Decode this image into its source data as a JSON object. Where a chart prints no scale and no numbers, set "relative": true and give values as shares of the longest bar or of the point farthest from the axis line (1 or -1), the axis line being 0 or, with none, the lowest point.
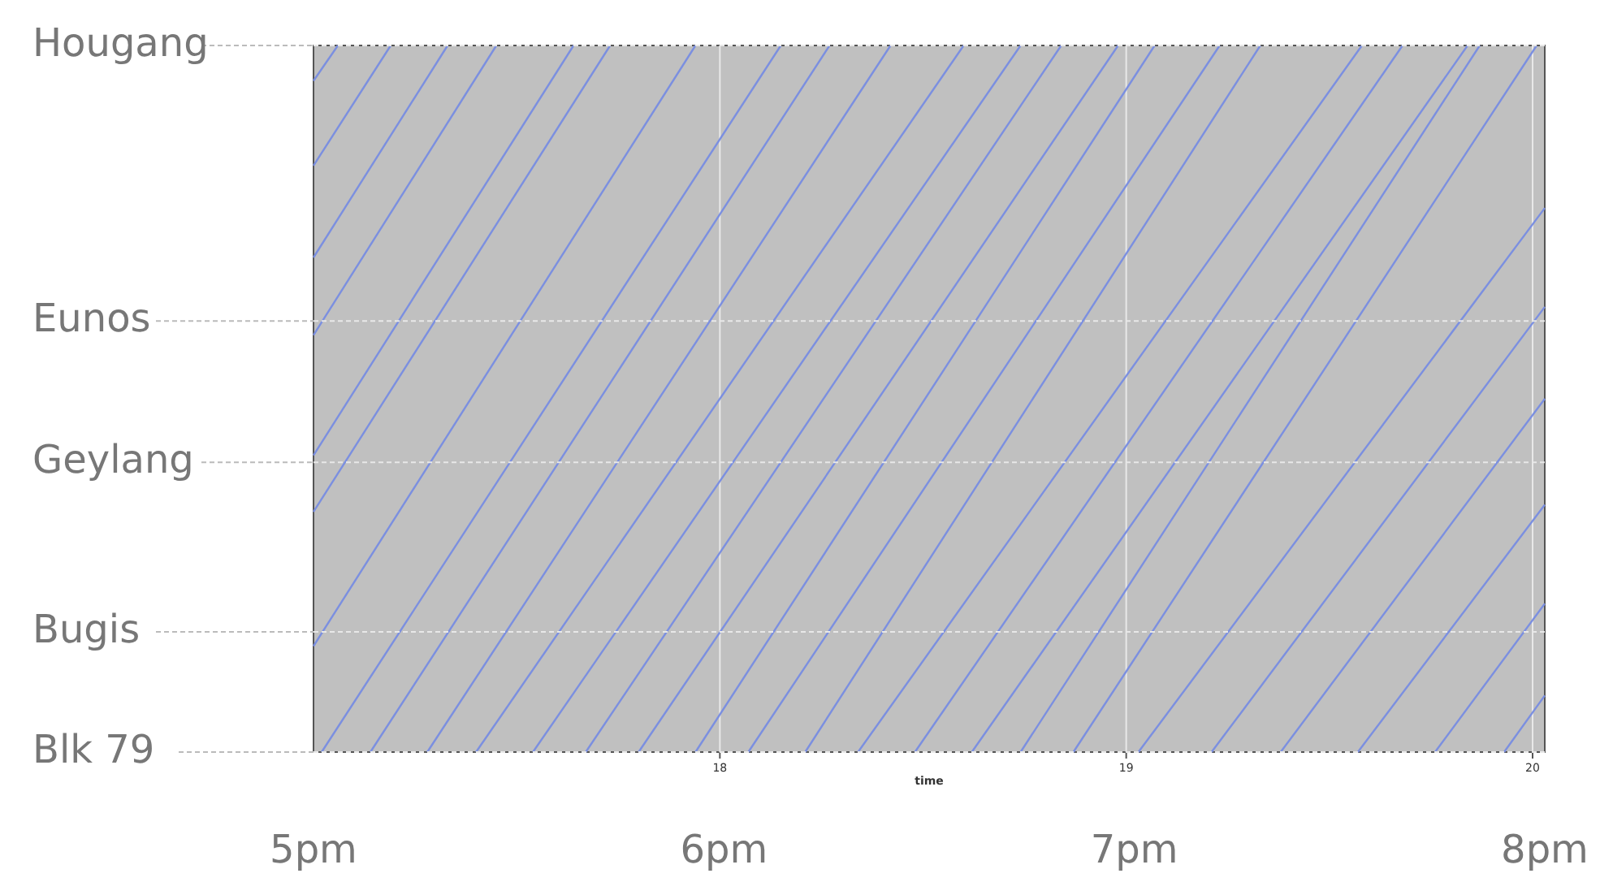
{
  "chart_data": {
    "type": "line",
    "xlabel": "time",
    "relative": true,
    "xlim": [
      17,
      20.03
    ],
    "xticks": [
      18,
      19,
      20
    ],
    "grid": "x",
    "marker": "none",
    "line_style": "solid",
    "annotations": [
      "5pm",
      "6pm",
      "7pm",
      "8pm"
    ],
    "ref_lines": [
      {
        "axis": "y",
        "value": 0,
        "label": "Blk 79"
      },
      {
        "axis": "y",
        "value": 0.17,
        "label": "Bugis"
      },
      {
        "axis": "y",
        "value": 0.41,
        "label": "Geylang"
      },
      {
        "axis": "y",
        "value": 0.61,
        "label": "Eunos"
      },
      {
        "axis": "y",
        "value": 1,
        "label": "Hougang"
      }
    ],
    "series": [
      {
        "color": "#7b8fe0",
        "x": [
          17,
          17.06
        ],
        "values": [
          0.95,
          1
        ]
      },
      {
        "color": "#7b8fe0",
        "x": [
          17,
          17.19
        ],
        "values": [
          0.83,
          1
        ]
      },
      {
        "color": "#7b8fe0",
        "x": [
          17,
          17.33
        ],
        "values": [
          0.7,
          1
        ]
      },
      {
        "color": "#7b8fe0",
        "x": [
          17,
          17.45
        ],
        "values": [
          0.59,
          1
        ]
      },
      {
        "color": "#7b8fe0",
        "x": [
          17,
          17.64
        ],
        "values": [
          0.42,
          1
        ]
      },
      {
        "color": "#7b8fe0",
        "x": [
          17,
          17.73
        ],
        "values": [
          0.34,
          1
        ]
      },
      {
        "color": "#7b8fe0",
        "x": [
          17,
          17.94
        ],
        "values": [
          0.15,
          1
        ]
      },
      {
        "color": "#7b8fe0",
        "x": [
          17.02,
          18.15
        ],
        "values": [
          0,
          1
        ]
      },
      {
        "color": "#7b8fe0",
        "x": [
          17.14,
          18.27
        ],
        "values": [
          0,
          1
        ]
      },
      {
        "color": "#7b8fe0",
        "x": [
          17.28,
          18.42
        ],
        "values": [
          0,
          1
        ]
      },
      {
        "color": "#7b8fe0",
        "x": [
          17.4,
          18.6
        ],
        "values": [
          0,
          1
        ]
      },
      {
        "color": "#7b8fe0",
        "x": [
          17.54,
          18.74
        ],
        "values": [
          0,
          1
        ]
      },
      {
        "color": "#7b8fe0",
        "x": [
          17.67,
          18.84
        ],
        "values": [
          0,
          1
        ]
      },
      {
        "color": "#7b8fe0",
        "x": [
          17.8,
          18.98
        ],
        "values": [
          0,
          1
        ]
      },
      {
        "color": "#7b8fe0",
        "x": [
          17.94,
          19.07
        ],
        "values": [
          0,
          1
        ]
      },
      {
        "color": "#7b8fe0",
        "x": [
          18.07,
          19.23
        ],
        "values": [
          0,
          1
        ]
      },
      {
        "color": "#7b8fe0",
        "x": [
          18.21,
          19.33
        ],
        "values": [
          0,
          1
        ]
      },
      {
        "color": "#7b8fe0",
        "x": [
          18.34,
          19.58
        ],
        "values": [
          0,
          1
        ]
      },
      {
        "color": "#7b8fe0",
        "x": [
          18.48,
          19.68
        ],
        "values": [
          0,
          1
        ]
      },
      {
        "color": "#7b8fe0",
        "x": [
          18.62,
          19.84
        ],
        "values": [
          0,
          1
        ]
      },
      {
        "color": "#7b8fe0",
        "x": [
          18.74,
          19.87
        ],
        "values": [
          0,
          1
        ]
      },
      {
        "color": "#7b8fe0",
        "x": [
          18.87,
          20.01
        ],
        "values": [
          0,
          1
        ]
      },
      {
        "color": "#7b8fe0",
        "x": [
          19.03,
          20.03
        ],
        "values": [
          0,
          0.77
        ]
      },
      {
        "color": "#7b8fe0",
        "x": [
          19.21,
          20.03
        ],
        "values": [
          0,
          0.63
        ]
      },
      {
        "color": "#7b8fe0",
        "x": [
          19.38,
          20.03
        ],
        "values": [
          0,
          0.5
        ]
      },
      {
        "color": "#7b8fe0",
        "x": [
          19.57,
          20.03
        ],
        "values": [
          0,
          0.35
        ]
      },
      {
        "color": "#7b8fe0",
        "x": [
          19.76,
          20.03
        ],
        "values": [
          0,
          0.21
        ]
      },
      {
        "color": "#7b8fe0",
        "x": [
          19.93,
          20.03
        ],
        "values": [
          0,
          0.08
        ]
      }
    ]
  }
}
